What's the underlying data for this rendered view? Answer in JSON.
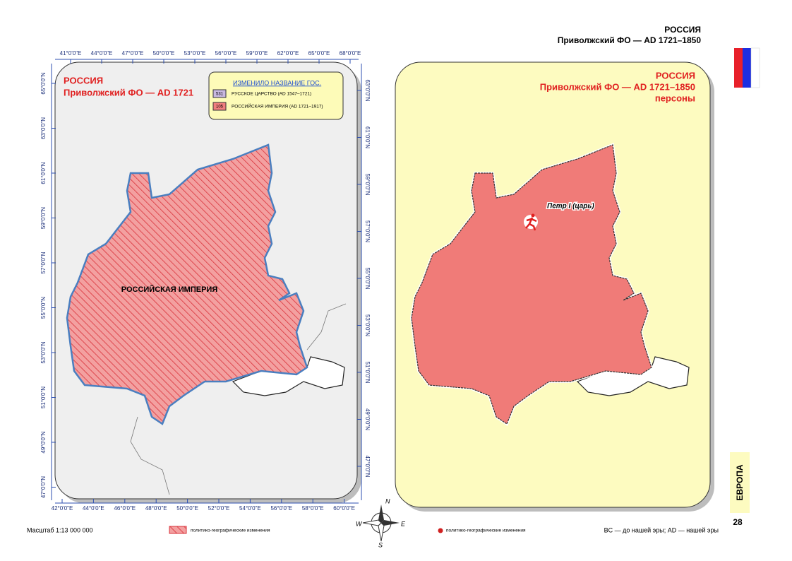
{
  "header": {
    "country": "РОССИЯ",
    "subtitle": "Приволжский ФО — AD 1721–1850"
  },
  "left_map": {
    "title": "РОССИЯ",
    "subtitle": "Приволжский ФО — AD 1721",
    "legend": {
      "title": "ИЗМЕНИЛО НАЗВАНИЕ ГОС.",
      "items": [
        {
          "code": "531",
          "label": "РУССКОЕ ЦАРСТВО (AD 1547–1721)"
        },
        {
          "code": "105",
          "label": "РОССИЙСКАЯ ИМПЕРИЯ (AD 1721–1917)"
        }
      ]
    },
    "region_label": "РОССИЙСКАЯ ИМПЕРИЯ",
    "top_ticks": [
      "41°0'0\"E",
      "44°0'0\"E",
      "47°0'0\"E",
      "50°0'0\"E",
      "53°0'0\"E",
      "56°0'0\"E",
      "59°0'0\"E",
      "62°0'0\"E",
      "65°0'0\"E",
      "68°0'0\"E"
    ],
    "bottom_ticks": [
      "42°0'0\"E",
      "44°0'0\"E",
      "46°0'0\"E",
      "48°0'0\"E",
      "50°0'0\"E",
      "52°0'0\"E",
      "54°0'0\"E",
      "56°0'0\"E",
      "58°0'0\"E",
      "60°0'0\"E"
    ],
    "left_ticks": [
      "65°0'0\"N",
      "63°0'0\"N",
      "61°0'0\"N",
      "59°0'0\"N",
      "57°0'0\"N",
      "55°0'0\"N",
      "53°0'0\"N",
      "51°0'0\"N",
      "49°0'0\"N",
      "47°0'0\"N"
    ],
    "right_ticks": [
      "63°0'0\"N",
      "61°0'0\"N",
      "59°0'0\"N",
      "57°0'0\"N",
      "55°0'0\"N",
      "53°0'0\"N",
      "51°0'0\"N",
      "49°0'0\"N",
      "47°0'0\"N"
    ]
  },
  "right_map": {
    "title": "РОССИЯ",
    "subtitle": "Приволжский ФО — AD 1721–1850",
    "caption": "персоны",
    "person": "Петр I (царь)"
  },
  "compass": {
    "n": "N",
    "e": "E",
    "s": "S",
    "w": "W"
  },
  "footer": {
    "scale": "Масштаб 1:13 000 000",
    "hatch_legend": "политико-географические изменения",
    "dot_legend": "политико-географические изменения",
    "era_note": "BC — до нашей эры; AD — нашей эры"
  },
  "side_tab": {
    "section": "ЕВРОПА",
    "page": "28"
  }
}
